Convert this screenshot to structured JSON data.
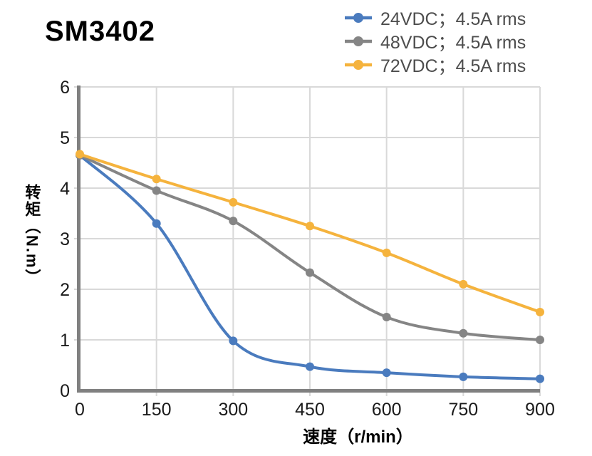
{
  "title": "SM3402",
  "chart_data": {
    "type": "line",
    "smooth": true,
    "grid": true,
    "legend_position": "top-right",
    "x": [
      0,
      150,
      300,
      450,
      600,
      750,
      900
    ],
    "x_ticks": [
      "0",
      "150",
      "300",
      "450",
      "600",
      "750",
      "900"
    ],
    "y_ticks": [
      "0",
      "1",
      "2",
      "3",
      "4",
      "5",
      "6"
    ],
    "xlim": [
      0,
      900
    ],
    "ylim": [
      0,
      6
    ],
    "xlabel": "速度（r/min）",
    "ylabel": "转矩（N.m）",
    "series": [
      {
        "key": "24vdc",
        "name": "24VDC；4.5A rms",
        "color": "#4A7BBE",
        "values": [
          4.65,
          3.3,
          0.98,
          0.47,
          0.35,
          0.27,
          0.23
        ]
      },
      {
        "key": "48vdc",
        "name": "48VDC；4.5A rms",
        "color": "#858585",
        "values": [
          4.65,
          3.95,
          3.35,
          2.33,
          1.45,
          1.13,
          1.0
        ]
      },
      {
        "key": "72vdc",
        "name": "72VDC；4.5A rms",
        "color": "#F5B33D",
        "values": [
          4.67,
          4.18,
          3.72,
          3.25,
          2.72,
          2.1,
          1.55
        ]
      }
    ]
  },
  "colors": {
    "background": "#ffffff",
    "axis": "#808080",
    "grid": "#D9D9D9",
    "tick_label": "#1a1a1a",
    "legend_text": "#4d4d4d",
    "title": "#000000"
  }
}
